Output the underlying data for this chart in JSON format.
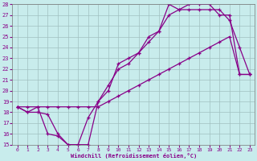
{
  "xlabel": "Windchill (Refroidissement éolien,°C)",
  "background_color": "#c8ecec",
  "line_color": "#880088",
  "grid_color": "#a0c0c0",
  "xlim": [
    -0.5,
    23.5
  ],
  "ylim": [
    15,
    28
  ],
  "xticks": [
    0,
    1,
    2,
    3,
    4,
    5,
    6,
    7,
    8,
    9,
    10,
    11,
    12,
    13,
    14,
    15,
    16,
    17,
    18,
    19,
    20,
    21,
    22,
    23
  ],
  "yticks": [
    15,
    16,
    17,
    18,
    19,
    20,
    21,
    22,
    23,
    24,
    25,
    26,
    27,
    28
  ],
  "line1_x": [
    0,
    1,
    2,
    3,
    4,
    5,
    6,
    7,
    8,
    9,
    10,
    11,
    12,
    13,
    14,
    15,
    16,
    17,
    18,
    19,
    20,
    21,
    22,
    23
  ],
  "line1_y": [
    18.5,
    18.0,
    18.5,
    16.0,
    15.8,
    15.0,
    15.0,
    15.0,
    19.0,
    20.0,
    22.5,
    23.0,
    23.5,
    25.0,
    25.5,
    28.0,
    27.5,
    27.5,
    27.5,
    27.5,
    27.5,
    26.5,
    24.0,
    21.5
  ],
  "line2_x": [
    0,
    1,
    2,
    3,
    4,
    5,
    6,
    7,
    8,
    9,
    10,
    11,
    12,
    13,
    14,
    15,
    16,
    17,
    18,
    19,
    20,
    21,
    22,
    23
  ],
  "line2_y": [
    18.5,
    18.0,
    18.0,
    17.8,
    16.0,
    15.0,
    15.0,
    17.5,
    19.0,
    20.5,
    22.0,
    22.5,
    23.5,
    24.5,
    25.5,
    27.0,
    27.5,
    28.0,
    28.0,
    28.0,
    27.0,
    27.0,
    21.5,
    21.5
  ],
  "line3_x": [
    0,
    1,
    2,
    3,
    4,
    5,
    6,
    7,
    8,
    9,
    10,
    11,
    12,
    13,
    14,
    15,
    16,
    17,
    18,
    19,
    20,
    21,
    22,
    23
  ],
  "line3_y": [
    18.5,
    18.5,
    18.5,
    18.5,
    18.5,
    18.5,
    18.5,
    18.5,
    18.5,
    19.0,
    19.5,
    20.0,
    20.5,
    21.0,
    21.5,
    22.0,
    22.5,
    23.0,
    23.5,
    24.0,
    24.5,
    25.0,
    21.5,
    21.5
  ]
}
